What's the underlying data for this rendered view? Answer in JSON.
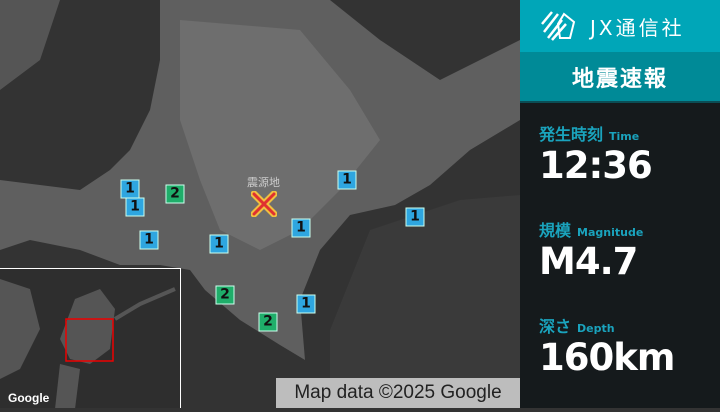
{
  "map": {
    "epicenter_label": "震源地",
    "markers": [
      {
        "intensity": "1"
      },
      {
        "intensity": "1"
      },
      {
        "intensity": "1"
      },
      {
        "intensity": "1"
      },
      {
        "intensity": "1"
      },
      {
        "intensity": "1"
      },
      {
        "intensity": "1"
      },
      {
        "intensity": "1"
      },
      {
        "intensity": "2"
      },
      {
        "intensity": "2"
      },
      {
        "intensity": "2"
      }
    ],
    "google_logo": "Google",
    "attribution": "Map data ©2025 Google",
    "colors": {
      "intensity1": "#2ea6e0",
      "intensity2": "#1fae6a",
      "epicenter": "#e03030"
    }
  },
  "panel": {
    "brand": "JX通信社",
    "title": "地震速報",
    "time": {
      "label": "発生時刻",
      "label_en": "Time",
      "value": "12:36"
    },
    "magnitude": {
      "label": "規模",
      "label_en": "Magnitude",
      "value": "M4.7"
    },
    "depth": {
      "label": "深さ",
      "label_en": "Depth",
      "value": "160km"
    }
  }
}
